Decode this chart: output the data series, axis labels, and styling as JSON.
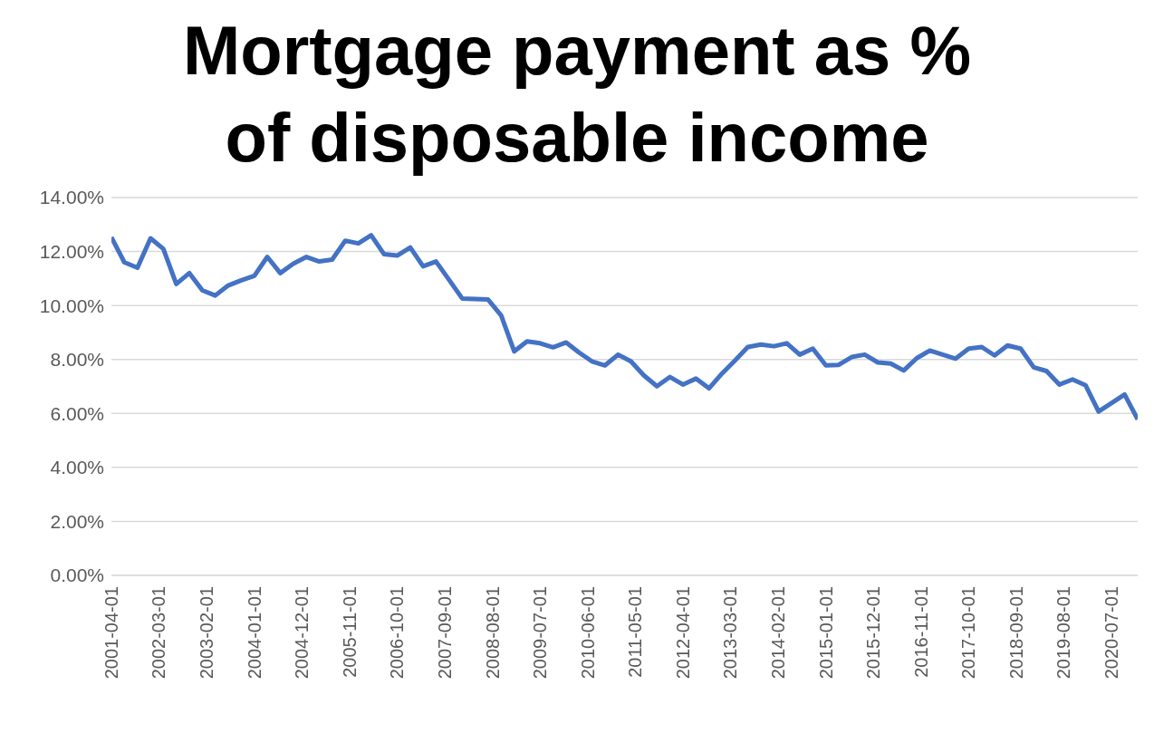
{
  "chart_data": {
    "type": "line",
    "title": "Mortgage payment as % of disposable income",
    "x": [
      "2001-04-01",
      "2001-07-01",
      "2001-10-01",
      "2002-01-01",
      "2002-04-01",
      "2002-07-01",
      "2002-10-01",
      "2003-01-01",
      "2003-04-01",
      "2003-07-01",
      "2003-10-01",
      "2004-01-01",
      "2004-04-01",
      "2004-07-01",
      "2004-10-01",
      "2005-01-01",
      "2005-04-01",
      "2005-07-01",
      "2005-10-01",
      "2006-01-01",
      "2006-04-01",
      "2006-07-01",
      "2006-10-01",
      "2007-01-01",
      "2007-04-01",
      "2007-07-01",
      "2007-10-01",
      "2008-01-01",
      "2008-04-01",
      "2008-07-01",
      "2008-10-01",
      "2009-01-01",
      "2009-04-01",
      "2009-07-01",
      "2009-10-01",
      "2010-01-01",
      "2010-04-01",
      "2010-07-01",
      "2010-10-01",
      "2011-01-01",
      "2011-04-01",
      "2011-07-01",
      "2011-10-01",
      "2012-01-01",
      "2012-04-01",
      "2012-07-01",
      "2012-10-01",
      "2013-01-01",
      "2013-04-01",
      "2013-07-01",
      "2013-10-01",
      "2014-01-01",
      "2014-04-01",
      "2014-07-01",
      "2014-10-01",
      "2015-01-01",
      "2015-04-01",
      "2015-07-01",
      "2015-10-01",
      "2016-01-01",
      "2016-04-01",
      "2016-07-01",
      "2016-10-01",
      "2017-01-01",
      "2017-04-01",
      "2017-07-01",
      "2017-10-01",
      "2018-01-01",
      "2018-04-01",
      "2018-07-01",
      "2018-10-01",
      "2019-01-01",
      "2019-04-01",
      "2019-07-01",
      "2019-10-01",
      "2020-01-01",
      "2020-04-01",
      "2020-07-01",
      "2020-10-01",
      "2021-01-01"
    ],
    "series": [
      {
        "color": "#4472c4",
        "values": [
          12.53,
          11.6,
          11.4,
          12.49,
          12.1,
          10.8,
          11.2,
          10.56,
          10.37,
          10.74,
          10.93,
          11.1,
          11.8,
          11.2,
          11.55,
          11.8,
          11.63,
          11.7,
          12.4,
          12.3,
          12.6,
          11.9,
          11.85,
          12.15,
          11.45,
          11.63,
          10.95,
          10.26,
          10.24,
          10.22,
          9.63,
          8.3,
          8.67,
          8.6,
          8.45,
          8.63,
          8.26,
          7.93,
          7.78,
          8.18,
          7.93,
          7.41,
          7.01,
          7.35,
          7.07,
          7.29,
          6.93,
          7.48,
          7.96,
          8.46,
          8.55,
          8.49,
          8.6,
          8.18,
          8.4,
          7.78,
          7.8,
          8.09,
          8.18,
          7.89,
          7.85,
          7.59,
          8.05,
          8.33,
          8.18,
          8.03,
          8.4,
          8.46,
          8.15,
          8.52,
          8.4,
          7.71,
          7.57,
          7.07,
          7.26,
          7.04,
          6.07,
          6.38,
          6.7,
          5.78
        ]
      }
    ],
    "xlim": [
      "2001-04-01",
      "2021-01-01"
    ],
    "xticks": [
      "2001-04-01",
      "2002-03-01",
      "2003-02-01",
      "2004-01-01",
      "2004-12-01",
      "2005-11-01",
      "2006-10-01",
      "2007-09-01",
      "2008-08-01",
      "2009-07-01",
      "2010-06-01",
      "2011-05-01",
      "2012-04-01",
      "2013-03-01",
      "2014-02-01",
      "2015-01-01",
      "2015-12-01",
      "2016-11-01",
      "2017-10-01",
      "2018-09-01",
      "2019-08-01",
      "2020-07-01"
    ],
    "ylim": [
      0,
      14
    ],
    "yticks": [
      {
        "value": 0,
        "label": "0.00%"
      },
      {
        "value": 2,
        "label": "2.00%"
      },
      {
        "value": 4,
        "label": "4.00%"
      },
      {
        "value": 6,
        "label": "6.00%"
      },
      {
        "value": 8,
        "label": "8.00%"
      },
      {
        "value": 10,
        "label": "10.00%"
      },
      {
        "value": 12,
        "label": "12.00%"
      },
      {
        "value": 14,
        "label": "14.00%"
      }
    ],
    "grid": "y",
    "marker": "none",
    "line_style": "solid",
    "legend": false
  }
}
